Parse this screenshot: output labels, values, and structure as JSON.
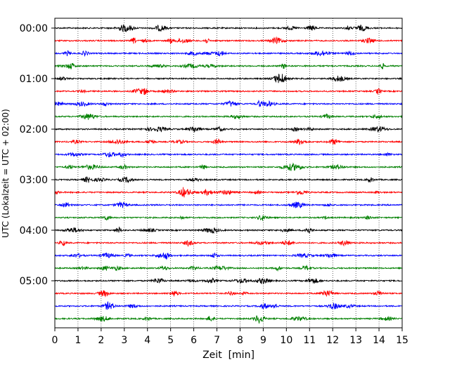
{
  "chart_data": {
    "type": "line",
    "title": "",
    "xlabel": "Zeit  [min]",
    "ylabel": "UTC (Lokalzeit = UTC + 02:00)",
    "xlim": [
      0,
      15
    ],
    "x_ticks": [
      "0",
      "1",
      "2",
      "3",
      "4",
      "5",
      "6",
      "7",
      "8",
      "9",
      "10",
      "11",
      "12",
      "13",
      "14",
      "15"
    ],
    "y_ticks": [
      "00:00",
      "01:00",
      "02:00",
      "03:00",
      "04:00",
      "05:00"
    ],
    "grid": "vertical dotted at each minute",
    "trace_interval_min": 15,
    "trace_count": 24,
    "trace_colors": [
      "#000000",
      "#ff0000",
      "#0000ff",
      "#008000"
    ],
    "series": [
      {
        "start": "00:00",
        "color": "#000000"
      },
      {
        "start": "00:15",
        "color": "#ff0000"
      },
      {
        "start": "00:30",
        "color": "#0000ff"
      },
      {
        "start": "00:45",
        "color": "#008000"
      },
      {
        "start": "01:00",
        "color": "#000000"
      },
      {
        "start": "01:15",
        "color": "#ff0000"
      },
      {
        "start": "01:30",
        "color": "#0000ff"
      },
      {
        "start": "01:45",
        "color": "#008000"
      },
      {
        "start": "02:00",
        "color": "#000000"
      },
      {
        "start": "02:15",
        "color": "#ff0000"
      },
      {
        "start": "02:30",
        "color": "#0000ff"
      },
      {
        "start": "02:45",
        "color": "#008000"
      },
      {
        "start": "03:00",
        "color": "#000000"
      },
      {
        "start": "03:15",
        "color": "#ff0000"
      },
      {
        "start": "03:30",
        "color": "#0000ff"
      },
      {
        "start": "03:45",
        "color": "#008000"
      },
      {
        "start": "04:00",
        "color": "#000000"
      },
      {
        "start": "04:15",
        "color": "#ff0000"
      },
      {
        "start": "04:30",
        "color": "#0000ff"
      },
      {
        "start": "04:45",
        "color": "#008000"
      },
      {
        "start": "05:00",
        "color": "#000000"
      },
      {
        "start": "05:15",
        "color": "#ff0000"
      },
      {
        "start": "05:30",
        "color": "#0000ff"
      },
      {
        "start": "05:45",
        "color": "#008000"
      }
    ]
  }
}
